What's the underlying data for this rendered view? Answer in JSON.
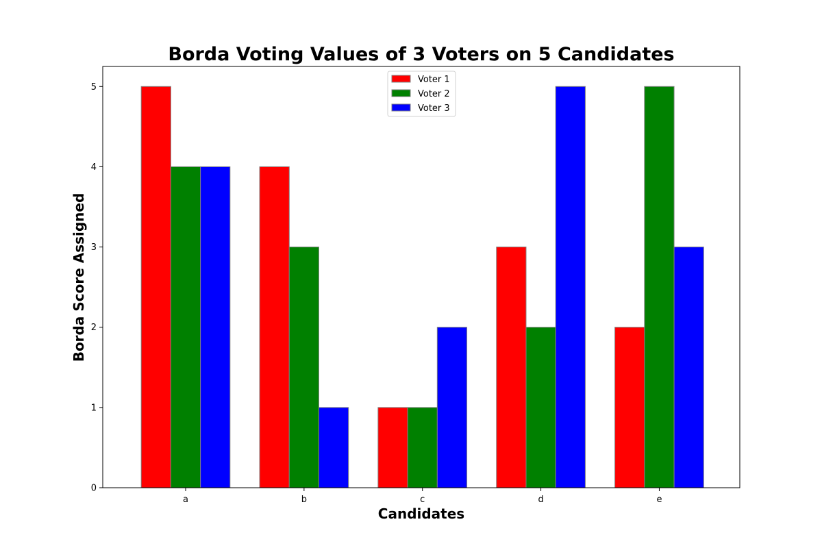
{
  "chart_data": {
    "type": "bar",
    "title": "Borda Voting Values of 3 Voters on 5 Candidates",
    "xlabel": "Candidates",
    "ylabel": "Borda Score Assigned",
    "categories": [
      "a",
      "b",
      "c",
      "d",
      "e"
    ],
    "ylim": [
      0,
      5.25
    ],
    "yticks": [
      "0",
      "1",
      "2",
      "3",
      "4",
      "5"
    ],
    "grid": false,
    "legend_position": "top-center",
    "series": [
      {
        "name": "Voter 1",
        "color": "#ff0000",
        "values": [
          5,
          4,
          1,
          3,
          2
        ]
      },
      {
        "name": "Voter 2",
        "color": "#008000",
        "values": [
          4,
          3,
          1,
          2,
          5
        ]
      },
      {
        "name": "Voter 3",
        "color": "#0000ff",
        "values": [
          4,
          1,
          2,
          5,
          3
        ]
      }
    ],
    "bar_edge_color": "#808080"
  }
}
